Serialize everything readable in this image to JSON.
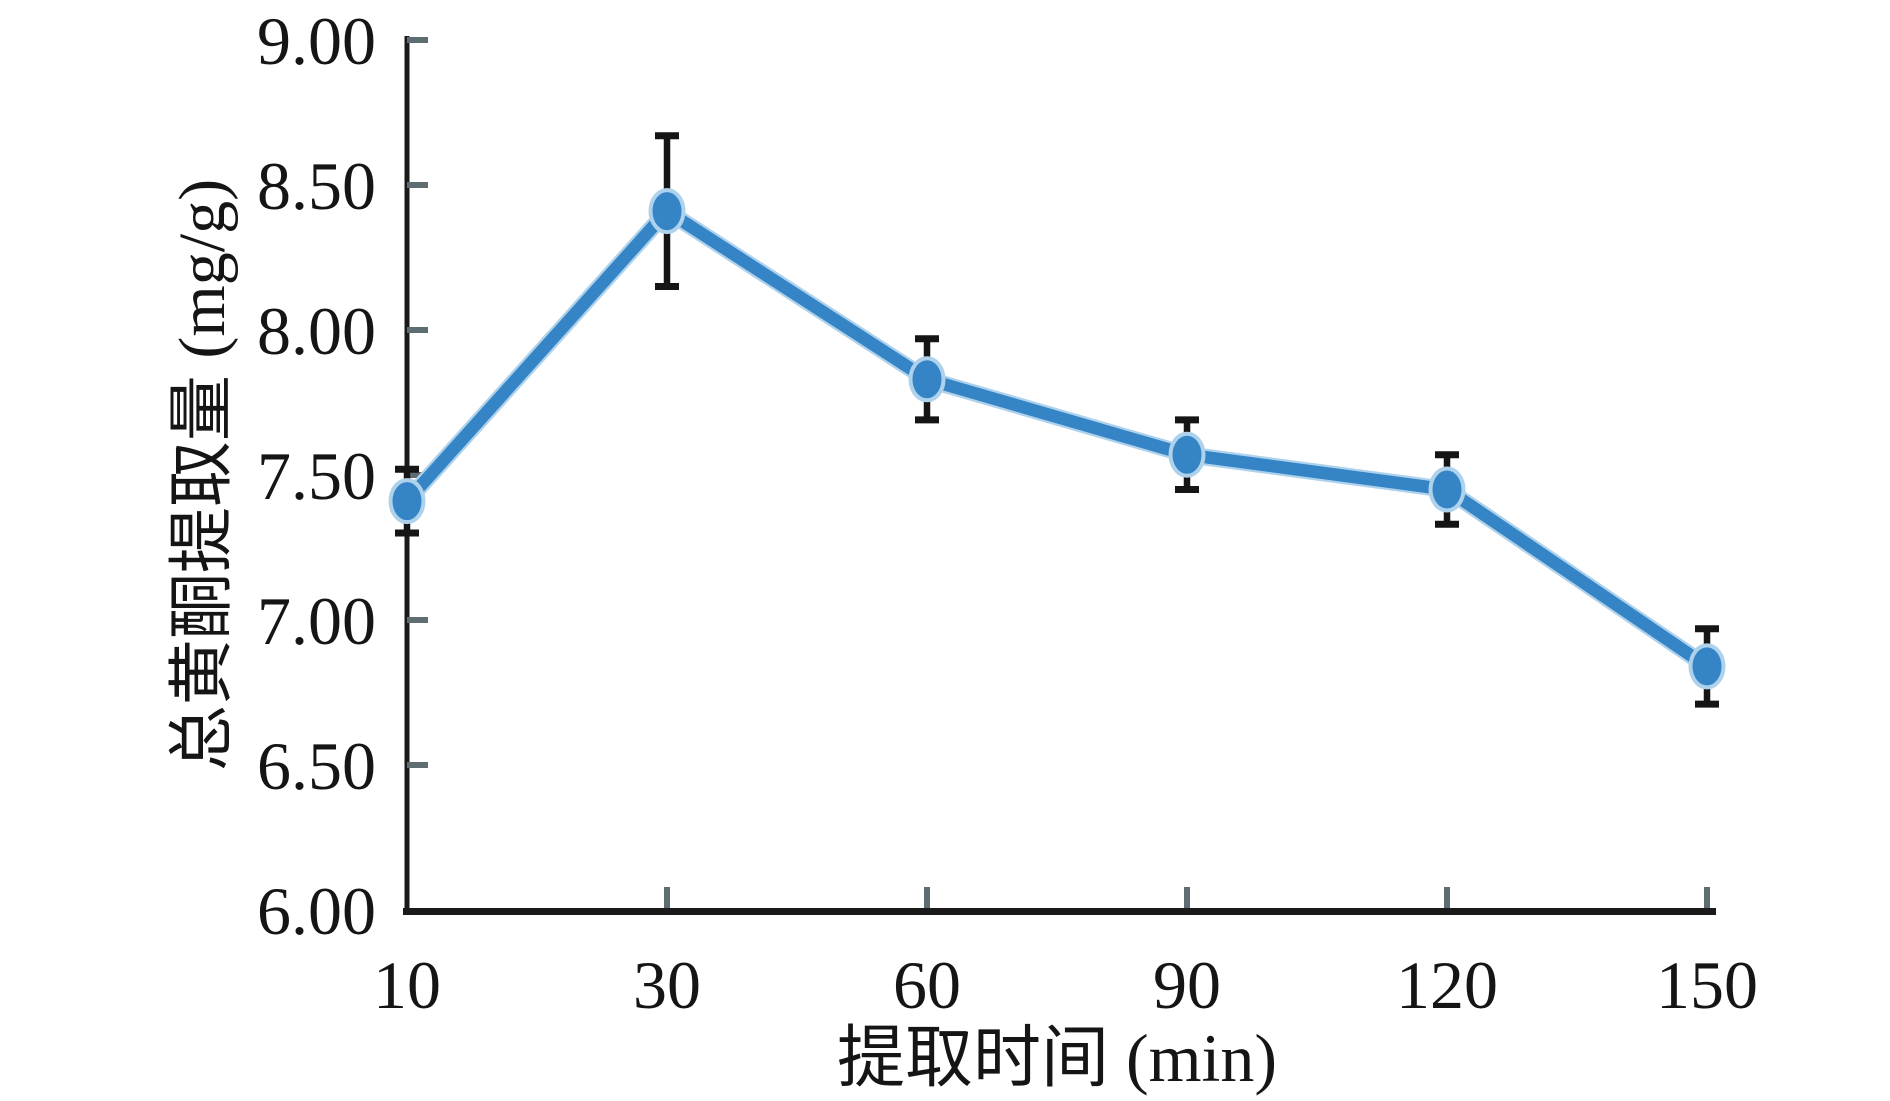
{
  "chart_data": {
    "type": "line",
    "title": "",
    "x": [
      10,
      30,
      60,
      90,
      120,
      150
    ],
    "xtick_labels": [
      "10",
      "30",
      "60",
      "90",
      "120",
      "150"
    ],
    "series": [
      {
        "name": "总黄酮提取量",
        "values": [
          7.41,
          8.41,
          7.83,
          7.57,
          7.45,
          6.84
        ],
        "errors": [
          0.11,
          0.26,
          0.14,
          0.12,
          0.12,
          0.13
        ]
      }
    ],
    "xlabel": "提取时间 (min)",
    "ylabel": "总黄酮提取量 (mg/g)",
    "ylim": [
      6.0,
      9.0
    ],
    "ytick_step": 0.5,
    "ytick_labels": [
      "9.00",
      "8.50",
      "8.00",
      "7.50",
      "7.00",
      "6.50",
      "6.00"
    ],
    "grid": false,
    "legend": "none",
    "marker": "ellipse",
    "error_bars": true,
    "colors": {
      "line": "#3585C6",
      "marker": "#3585C6",
      "halo": "#AFD2EC",
      "error_bar": "#151515",
      "axis": "#1A1A1A",
      "tick": "#5E6D72",
      "text": "#151515",
      "background": "#FFFFFF"
    }
  }
}
